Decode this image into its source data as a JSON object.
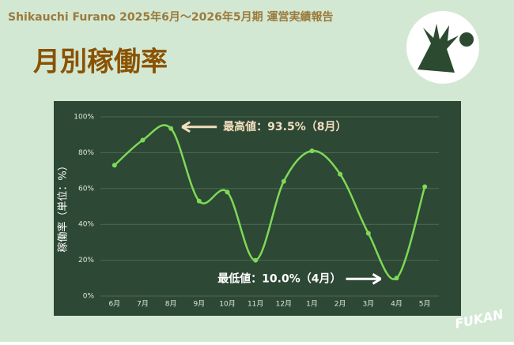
{
  "header": {
    "subtitle": "Shikauchi Furano 2025年6月～2026年5月期 運営実績報告",
    "title": "月別稼働率",
    "brand": "FUKAN"
  },
  "chart_data": {
    "type": "line",
    "y_label": "稼働率（単位：%）",
    "categories": [
      "6月",
      "7月",
      "8月",
      "9月",
      "10月",
      "11月",
      "12月",
      "1月",
      "2月",
      "3月",
      "4月",
      "5月"
    ],
    "series": [
      {
        "name": "稼働率",
        "color": "#7ed957",
        "values": [
          73,
          87,
          93.5,
          53,
          58,
          20,
          64,
          81,
          68,
          35,
          10.0,
          61
        ]
      }
    ],
    "ylim": [
      0,
      100
    ],
    "yticks": [
      {
        "value": 0,
        "label": "0%"
      },
      {
        "value": 20,
        "label": "20%"
      },
      {
        "value": 40,
        "label": "40%"
      },
      {
        "value": 60,
        "label": "60%"
      },
      {
        "value": 80,
        "label": "80%"
      },
      {
        "value": 100,
        "label": "100%"
      }
    ],
    "grid": true,
    "annotations": [
      {
        "text": "最高値：93.5%（8月）",
        "category": 2
      },
      {
        "text": "最低値：10.0%（4月）",
        "category": 10
      }
    ]
  }
}
